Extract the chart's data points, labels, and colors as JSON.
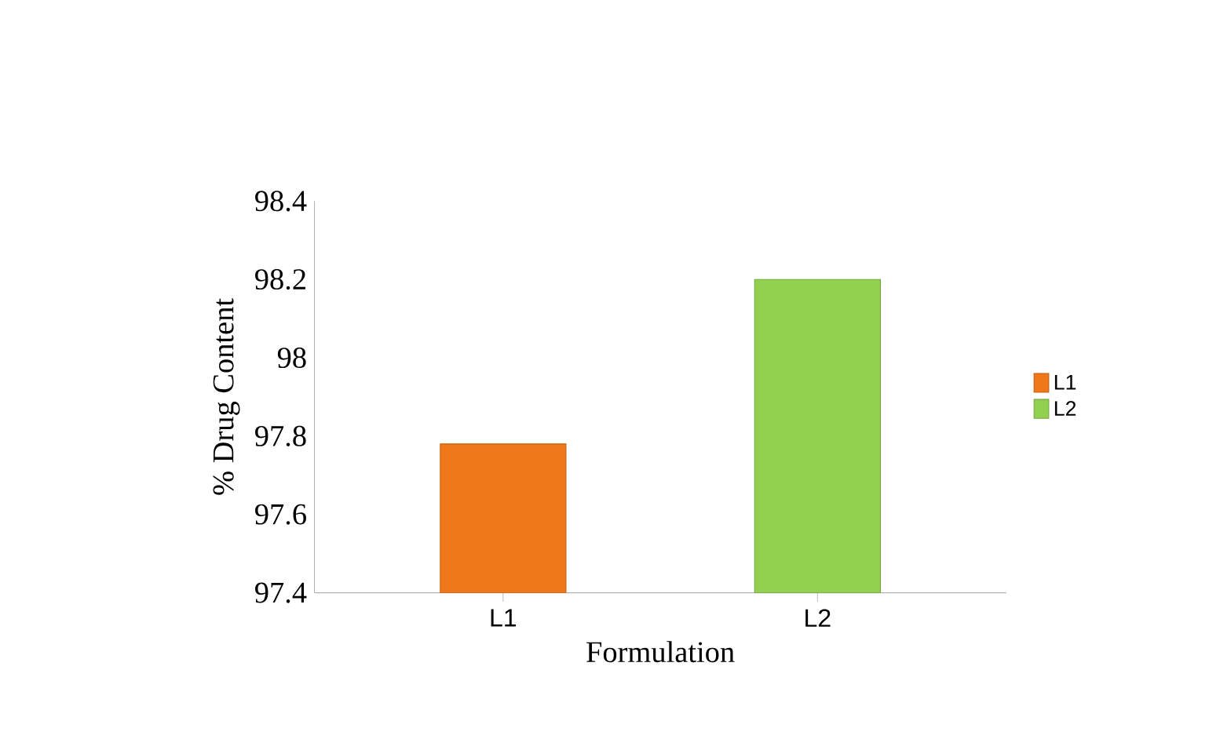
{
  "chart_data": {
    "type": "bar",
    "xlabel": "Formulation",
    "ylabel": "% Drug Content",
    "categories": [
      "L1",
      "L2"
    ],
    "series": [
      {
        "name": "L1",
        "color": "#f07818",
        "values": [
          97.78,
          null
        ]
      },
      {
        "name": "L2",
        "color": "#92d050",
        "values": [
          null,
          98.2
        ]
      }
    ],
    "ylim": [
      97.4,
      98.4
    ],
    "yticks": [
      97.4,
      97.6,
      97.8,
      98,
      98.2,
      98.4
    ],
    "legend": "right"
  }
}
